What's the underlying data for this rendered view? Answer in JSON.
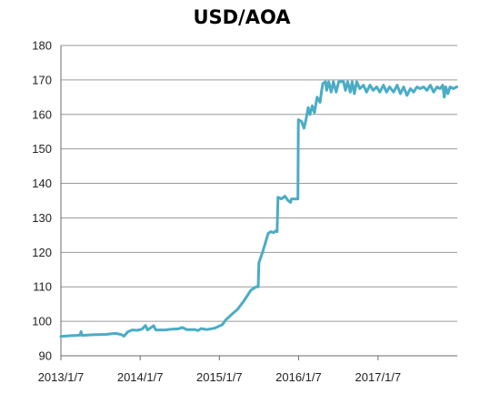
{
  "chart_data": {
    "type": "line",
    "title": "USD/AOA",
    "xlabel": "",
    "ylabel": "",
    "ylim": [
      90,
      180
    ],
    "yticks": [
      90,
      100,
      110,
      120,
      130,
      140,
      150,
      160,
      170,
      180
    ],
    "xlim": [
      "2013-01-07",
      "2018-01-07"
    ],
    "xticks": [
      {
        "date": "2013-01-07",
        "label": "2013/1/7"
      },
      {
        "date": "2014-01-07",
        "label": "2014/1/7"
      },
      {
        "date": "2015-01-07",
        "label": "2015/1/7"
      },
      {
        "date": "2016-01-07",
        "label": "2016/1/7"
      },
      {
        "date": "2017-01-07",
        "label": "2017/1/7"
      }
    ],
    "grid": true,
    "legend": "none",
    "series": [
      {
        "color": "#4bacc6",
        "points": [
          [
            "2013-01-07",
            95.6
          ],
          [
            "2013-02-15",
            95.8
          ],
          [
            "2013-03-20",
            95.9
          ],
          [
            "2013-04-05",
            96.0
          ],
          [
            "2013-04-10",
            97.0
          ],
          [
            "2013-04-14",
            95.9
          ],
          [
            "2013-06-01",
            96.1
          ],
          [
            "2013-08-01",
            96.2
          ],
          [
            "2013-09-15",
            96.5
          ],
          [
            "2013-10-10",
            96.2
          ],
          [
            "2013-10-25",
            95.7
          ],
          [
            "2013-11-10",
            96.9
          ],
          [
            "2013-12-01",
            97.5
          ],
          [
            "2013-12-25",
            97.4
          ],
          [
            "2014-01-15",
            97.7
          ],
          [
            "2014-02-01",
            98.8
          ],
          [
            "2014-02-10",
            97.5
          ],
          [
            "2014-03-10",
            98.7
          ],
          [
            "2014-03-20",
            97.5
          ],
          [
            "2014-05-01",
            97.5
          ],
          [
            "2014-06-01",
            97.7
          ],
          [
            "2014-07-01",
            97.8
          ],
          [
            "2014-07-20",
            98.2
          ],
          [
            "2014-08-10",
            97.6
          ],
          [
            "2014-09-15",
            97.6
          ],
          [
            "2014-10-01",
            97.3
          ],
          [
            "2014-10-15",
            97.9
          ],
          [
            "2014-11-10",
            97.6
          ],
          [
            "2014-12-15",
            98.0
          ],
          [
            "2015-01-20",
            99.0
          ],
          [
            "2015-02-07",
            100.5
          ],
          [
            "2015-03-01",
            101.8
          ],
          [
            "2015-04-01",
            103.5
          ],
          [
            "2015-05-01",
            106.0
          ],
          [
            "2015-06-01",
            109.0
          ],
          [
            "2015-06-25",
            110.0
          ],
          [
            "2015-07-05",
            110.0
          ],
          [
            "2015-07-08",
            117.0
          ],
          [
            "2015-07-25",
            120.0
          ],
          [
            "2015-08-20",
            125.5
          ],
          [
            "2015-09-01",
            126.0
          ],
          [
            "2015-09-15",
            125.7
          ],
          [
            "2015-09-25",
            126.3
          ],
          [
            "2015-09-30",
            126.0
          ],
          [
            "2015-10-04",
            136.0
          ],
          [
            "2015-10-20",
            135.5
          ],
          [
            "2015-11-05",
            136.3
          ],
          [
            "2015-11-20",
            135.0
          ],
          [
            "2015-12-01",
            134.5
          ],
          [
            "2015-12-05",
            135.5
          ],
          [
            "2015-12-25",
            135.5
          ],
          [
            "2016-01-04",
            135.5
          ],
          [
            "2016-01-06",
            158.5
          ],
          [
            "2016-01-20",
            158.0
          ],
          [
            "2016-02-01",
            156.0
          ],
          [
            "2016-02-10",
            158.5
          ],
          [
            "2016-02-20",
            162.0
          ],
          [
            "2016-02-28",
            160.0
          ],
          [
            "2016-03-10",
            162.5
          ],
          [
            "2016-03-20",
            160.5
          ],
          [
            "2016-04-01",
            165.0
          ],
          [
            "2016-04-15",
            163.5
          ],
          [
            "2016-04-22",
            167.0
          ],
          [
            "2016-04-28",
            169.0
          ],
          [
            "2016-05-10",
            169.5
          ],
          [
            "2016-05-15",
            167.0
          ],
          [
            "2016-05-25",
            169.5
          ],
          [
            "2016-06-05",
            166.5
          ],
          [
            "2016-06-15",
            169.5
          ],
          [
            "2016-06-28",
            166.5
          ],
          [
            "2016-07-10",
            169.5
          ],
          [
            "2016-08-01",
            169.5
          ],
          [
            "2016-08-10",
            167.0
          ],
          [
            "2016-08-20",
            169.5
          ],
          [
            "2016-09-01",
            166.5
          ],
          [
            "2016-09-10",
            169.5
          ],
          [
            "2016-09-20",
            166.0
          ],
          [
            "2016-10-01",
            169.5
          ],
          [
            "2016-10-15",
            167.5
          ],
          [
            "2016-11-01",
            168.5
          ],
          [
            "2016-11-15",
            166.5
          ],
          [
            "2016-12-01",
            168.5
          ],
          [
            "2016-12-15",
            167.0
          ],
          [
            "2017-01-01",
            168.0
          ],
          [
            "2017-01-15",
            166.5
          ],
          [
            "2017-02-01",
            168.5
          ],
          [
            "2017-02-15",
            166.5
          ],
          [
            "2017-03-01",
            168.0
          ],
          [
            "2017-03-20",
            166.5
          ],
          [
            "2017-04-05",
            168.5
          ],
          [
            "2017-04-20",
            166.0
          ],
          [
            "2017-05-05",
            168.0
          ],
          [
            "2017-05-20",
            165.5
          ],
          [
            "2017-06-05",
            167.5
          ],
          [
            "2017-06-20",
            166.5
          ],
          [
            "2017-07-05",
            168.0
          ],
          [
            "2017-07-20",
            167.5
          ],
          [
            "2017-08-05",
            168.0
          ],
          [
            "2017-08-20",
            167.0
          ],
          [
            "2017-09-05",
            168.5
          ],
          [
            "2017-09-20",
            166.5
          ],
          [
            "2017-10-05",
            168.0
          ],
          [
            "2017-10-20",
            167.5
          ],
          [
            "2017-11-01",
            168.5
          ],
          [
            "2017-11-08",
            165.0
          ],
          [
            "2017-11-15",
            168.0
          ],
          [
            "2017-11-25",
            166.0
          ],
          [
            "2017-12-05",
            168.0
          ],
          [
            "2017-12-20",
            167.5
          ],
          [
            "2018-01-05",
            168.0
          ]
        ]
      }
    ]
  }
}
